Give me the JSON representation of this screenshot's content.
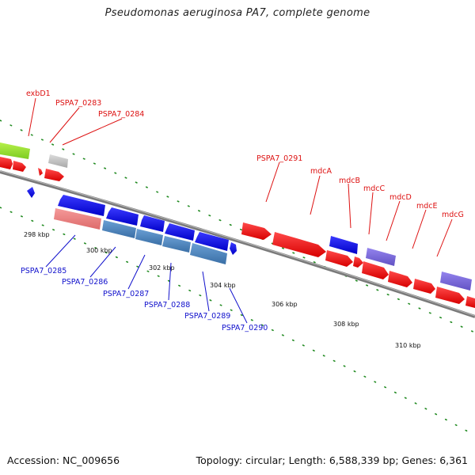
{
  "title": "Pseudomonas aeruginosa PA7, complete genome",
  "footer": {
    "accession": "Accession: NC_009656",
    "topology": "Topology: circular; Length: 6,588,339 bp; Genes: 6,361"
  },
  "colors": {
    "background": "#ffffff",
    "forward_gene": "#ee1111",
    "reverse_gene": "#1a1ae6",
    "label_forward": "#dd1111",
    "label_reverse": "#1111cc",
    "steel_blue_cds": "#4d86bf",
    "pink_cds": "#ee8080",
    "green_cds": "#99e033",
    "grey_cds": "#c8c8c8",
    "purple_cds": "#7d6ddc",
    "dots": "#228b22"
  },
  "scale_ticks": [
    "298 kbp",
    "300 kbp",
    "302 kbp",
    "304 kbp",
    "306 kbp",
    "308 kbp",
    "310 kbp"
  ],
  "top_labels": [
    "exbD1",
    "PSPA7_0283",
    "PSPA7_0284",
    "PSPA7_0291",
    "mdcA",
    "mdcB",
    "mdcC",
    "mdcD",
    "mdcE",
    "mdcG"
  ],
  "bottom_labels": [
    "PSPA7_0285",
    "PSPA7_0286",
    "PSPA7_0287",
    "PSPA7_0288",
    "PSPA7_0289",
    "PSPA7_0290"
  ]
}
